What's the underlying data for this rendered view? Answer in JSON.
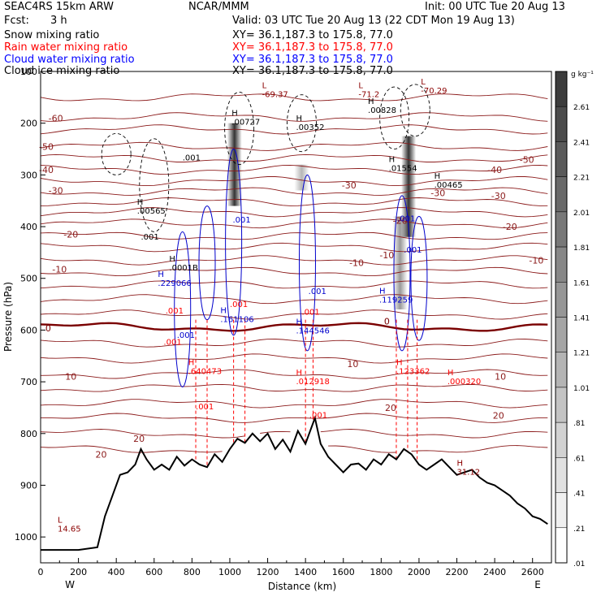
{
  "header": {
    "left_line1": "SEAC4RS 15km ARW",
    "center_line1": "NCAR/MMM",
    "right_line1": "Init: 00 UTC Tue 20 Aug 13",
    "fcst_label": "Fcst:",
    "fcst_value": "3 h",
    "valid": "Valid: 03 UTC Tue 20 Aug 13 (22 CDT Mon 19 Aug 13)"
  },
  "fields": [
    {
      "label": "Snow mixing ratio",
      "xy": "XY=  36.1,187.3 to 175.8, 77.0",
      "color": "#000000"
    },
    {
      "label": "Rain water mixing ratio",
      "xy": "XY=  36.1,187.3 to 175.8, 77.0",
      "color": "#ff0000"
    },
    {
      "label": "Cloud water mixing ratio",
      "xy": "XY=  36.1,187.3 to 175.8, 77.0",
      "color": "#0000ff"
    },
    {
      "label": "Cloud ice mixing ratio",
      "xy": "XY=  36.1,187.3 to 175.8, 77.0",
      "color": "#000000"
    }
  ],
  "colorbar": {
    "unit": "g kg⁻¹",
    "labels": [
      "2.61",
      "2.41",
      "2.21",
      "2.01",
      "1.81",
      "1.61",
      "1.41",
      "1.21",
      "1.01",
      ".81",
      ".61",
      ".41",
      ".21",
      ".01"
    ]
  },
  "chart_data": {
    "type": "cross-section",
    "xlabel": "Distance (km)",
    "ylabel": "Pressure (hPa)",
    "xlim": [
      0,
      2700
    ],
    "ylim": [
      1050,
      100
    ],
    "x_ticks": [
      0,
      200,
      400,
      600,
      800,
      1000,
      1200,
      1400,
      1600,
      1800,
      2000,
      2200,
      2400,
      2600
    ],
    "y_ticks": [
      100,
      200,
      300,
      400,
      500,
      600,
      700,
      800,
      900,
      1000
    ],
    "y_tick_labels": [
      "100",
      "200",
      "300",
      "400",
      "500",
      "600",
      "700",
      "800",
      "900",
      "1000"
    ],
    "x_end_labels": {
      "left": "W",
      "right": "E"
    },
    "terrain": [
      [
        0,
        1025
      ],
      [
        200,
        1025
      ],
      [
        300,
        1020
      ],
      [
        340,
        960
      ],
      [
        380,
        920
      ],
      [
        420,
        880
      ],
      [
        460,
        875
      ],
      [
        500,
        860
      ],
      [
        530,
        830
      ],
      [
        560,
        850
      ],
      [
        600,
        870
      ],
      [
        640,
        860
      ],
      [
        680,
        870
      ],
      [
        720,
        845
      ],
      [
        760,
        862
      ],
      [
        800,
        850
      ],
      [
        840,
        860
      ],
      [
        880,
        865
      ],
      [
        920,
        840
      ],
      [
        960,
        855
      ],
      [
        1000,
        830
      ],
      [
        1040,
        810
      ],
      [
        1080,
        818
      ],
      [
        1120,
        800
      ],
      [
        1160,
        815
      ],
      [
        1200,
        800
      ],
      [
        1240,
        830
      ],
      [
        1280,
        812
      ],
      [
        1320,
        835
      ],
      [
        1360,
        795
      ],
      [
        1400,
        820
      ],
      [
        1430,
        790
      ],
      [
        1450,
        770
      ],
      [
        1480,
        820
      ],
      [
        1520,
        845
      ],
      [
        1560,
        860
      ],
      [
        1600,
        875
      ],
      [
        1640,
        860
      ],
      [
        1680,
        858
      ],
      [
        1720,
        870
      ],
      [
        1760,
        850
      ],
      [
        1800,
        860
      ],
      [
        1840,
        840
      ],
      [
        1880,
        850
      ],
      [
        1920,
        830
      ],
      [
        1960,
        840
      ],
      [
        2000,
        860
      ],
      [
        2040,
        870
      ],
      [
        2080,
        860
      ],
      [
        2120,
        850
      ],
      [
        2160,
        865
      ],
      [
        2200,
        880
      ],
      [
        2240,
        875
      ],
      [
        2280,
        870
      ],
      [
        2320,
        885
      ],
      [
        2360,
        895
      ],
      [
        2400,
        900
      ],
      [
        2440,
        910
      ],
      [
        2480,
        920
      ],
      [
        2520,
        935
      ],
      [
        2560,
        945
      ],
      [
        2600,
        960
      ],
      [
        2640,
        965
      ],
      [
        2680,
        975
      ]
    ],
    "temperature_labels": [
      {
        "text": "-60",
        "x": 80,
        "p": 190,
        "zero": false
      },
      {
        "text": "-50",
        "x": 30,
        "p": 245,
        "zero": false
      },
      {
        "text": "-40",
        "x": 30,
        "p": 290,
        "zero": false
      },
      {
        "text": "-30",
        "x": 80,
        "p": 330,
        "zero": false
      },
      {
        "text": "-20",
        "x": 160,
        "p": 415,
        "zero": false
      },
      {
        "text": "-10",
        "x": 100,
        "p": 482,
        "zero": false
      },
      {
        "text": "0",
        "x": 40,
        "p": 596,
        "zero": true
      },
      {
        "text": "10",
        "x": 160,
        "p": 690,
        "zero": false
      },
      {
        "text": "20",
        "x": 320,
        "p": 840,
        "zero": false
      },
      {
        "text": "20",
        "x": 520,
        "p": 810,
        "zero": false
      },
      {
        "text": "-50",
        "x": 2570,
        "p": 270,
        "zero": false
      },
      {
        "text": "-40",
        "x": 2400,
        "p": 290,
        "zero": false
      },
      {
        "text": "-30",
        "x": 2100,
        "p": 335,
        "zero": false
      },
      {
        "text": "-30",
        "x": 2420,
        "p": 340,
        "zero": false
      },
      {
        "text": "-30",
        "x": 1630,
        "p": 320,
        "zero": false
      },
      {
        "text": "-20",
        "x": 2480,
        "p": 400,
        "zero": false
      },
      {
        "text": "-10",
        "x": 2620,
        "p": 465,
        "zero": false
      },
      {
        "text": "-10",
        "x": 1670,
        "p": 470,
        "zero": false
      },
      {
        "text": "0",
        "x": 1830,
        "p": 583,
        "zero": true
      },
      {
        "text": "10",
        "x": 2430,
        "p": 690,
        "zero": false
      },
      {
        "text": "20",
        "x": 2420,
        "p": 765,
        "zero": false
      },
      {
        "text": "20",
        "x": 1850,
        "p": 750,
        "zero": false
      },
      {
        "text": "-20",
        "x": 1900,
        "p": 388,
        "zero": false
      },
      {
        "text": "-10",
        "x": 1830,
        "p": 455,
        "zero": false
      },
      {
        "text": "10",
        "x": 1650,
        "p": 665,
        "zero": false
      }
    ],
    "extrema": [
      {
        "mark": "L",
        "value": "-69.37",
        "x": 1170,
        "p": 145,
        "color": "#8b0000"
      },
      {
        "mark": "L",
        "value": "-71.2",
        "x": 1680,
        "p": 145,
        "color": "#8b0000"
      },
      {
        "mark": "L",
        "value": "-70.29",
        "x": 2010,
        "p": 138,
        "color": "#8b0000"
      },
      {
        "mark": "L",
        "value": "14.65",
        "x": 90,
        "p": 985,
        "color": "#8b0000"
      },
      {
        "mark": "H",
        "value": "31.12",
        "x": 2200,
        "p": 875,
        "color": "#8b0000"
      },
      {
        "mark": "H",
        "value": ".00727",
        "x": 1010,
        "p": 198,
        "color": "#000000"
      },
      {
        "mark": "H",
        "value": ".00352",
        "x": 1350,
        "p": 208,
        "color": "#000000"
      },
      {
        "mark": "H",
        "value": ".00828",
        "x": 1730,
        "p": 175,
        "color": "#000000"
      },
      {
        "mark": "H",
        "value": ".01554",
        "x": 1840,
        "p": 288,
        "color": "#000000"
      },
      {
        "mark": "H",
        "value": ".00465",
        "x": 2080,
        "p": 320,
        "color": "#000000"
      },
      {
        "mark": "H",
        "value": ".00565",
        "x": 510,
        "p": 370,
        "color": "#000000"
      },
      {
        "mark": "H",
        "value": ".0001B",
        "x": 680,
        "p": 480,
        "color": "#000000"
      },
      {
        "mark": "H",
        "value": ".229066",
        "x": 620,
        "p": 510,
        "color": "#0000cc"
      },
      {
        "mark": "H",
        "value": ".161106",
        "x": 950,
        "p": 580,
        "color": "#0000cc"
      },
      {
        "mark": "H",
        "value": ".144546",
        "x": 1350,
        "p": 602,
        "color": "#0000cc"
      },
      {
        "mark": "H",
        "value": ".119259",
        "x": 1790,
        "p": 542,
        "color": "#0000cc"
      },
      {
        "mark": "H",
        "value": ".640473",
        "x": 780,
        "p": 680,
        "color": "#ff0000"
      },
      {
        "mark": "H",
        "value": ".012918",
        "x": 1350,
        "p": 700,
        "color": "#ff0000"
      },
      {
        "mark": "H",
        "value": ".123362",
        "x": 1880,
        "p": 680,
        "color": "#ff0000"
      },
      {
        "mark": "H",
        "value": ".000320",
        "x": 2150,
        "p": 700,
        "color": "#ff0000"
      }
    ],
    "small_labels": [
      {
        "text": ".001",
        "x": 750,
        "p": 272,
        "color": "#000000"
      },
      {
        "text": ".001",
        "x": 530,
        "p": 425,
        "color": "#000000"
      },
      {
        "text": ".001",
        "x": 1015,
        "p": 392,
        "color": "#0000cc"
      },
      {
        "text": ".001",
        "x": 1415,
        "p": 530,
        "color": "#0000cc"
      },
      {
        "text": ".001",
        "x": 1885,
        "p": 390,
        "color": "#0000cc"
      },
      {
        "text": ".001",
        "x": 1920,
        "p": 450,
        "color": "#0000cc"
      },
      {
        "text": ".001",
        "x": 720,
        "p": 615,
        "color": "#0000cc"
      },
      {
        "text": ".001",
        "x": 650,
        "p": 628,
        "color": "#ff0000"
      },
      {
        "text": ".001",
        "x": 660,
        "p": 568,
        "color": "#ff0000"
      },
      {
        "text": ".001",
        "x": 1000,
        "p": 555,
        "color": "#ff0000"
      },
      {
        "text": ".001",
        "x": 1380,
        "p": 570,
        "color": "#ff0000"
      },
      {
        "text": ".001",
        "x": 820,
        "p": 753,
        "color": "#ff0000"
      },
      {
        "text": ".001",
        "x": 1420,
        "p": 770,
        "color": "#ff0000"
      }
    ],
    "cloud_ice_columns": [
      {
        "x": 1025,
        "p_top": 200,
        "p_bottom": 360,
        "max": 2.6
      },
      {
        "x": 1945,
        "p_top": 225,
        "p_bottom": 420,
        "max": 2.6
      },
      {
        "x": 1900,
        "p_top": 380,
        "p_bottom": 560,
        "max": 0.6
      },
      {
        "x": 1380,
        "p_top": 280,
        "p_bottom": 330,
        "max": 0.15
      }
    ]
  }
}
